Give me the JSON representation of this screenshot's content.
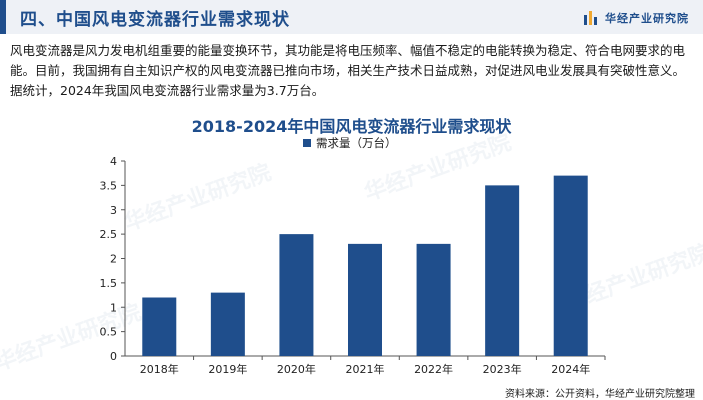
{
  "header": {
    "title": "四、中国风电变流器行业需求现状",
    "brand": "华经产业研究院"
  },
  "intro": "风电变流器是风力发电机组重要的能量变换环节，其功能是将电压频率、幅值不稳定的电能转换为稳定、符合电网要求的电能。目前，我国拥有自主知识产权的风电变流器已推向市场，相关生产技术日益成熟，对促进风电业发展具有突破性意义。据统计，2024年我国风电变流器行业需求量为3.7万台。",
  "watermark": "华经产业研究院",
  "colors": {
    "accent": "#1f4e8c",
    "bar": "#1f4e8c",
    "header_bg": "#eef1f6"
  },
  "chart_data": {
    "type": "bar",
    "title": "2018-2024年中国风电变流器行业需求现状",
    "categories": [
      "2018年",
      "2019年",
      "2020年",
      "2021年",
      "2022年",
      "2023年",
      "2024年"
    ],
    "series": [
      {
        "name": "需求量（万台）",
        "values": [
          1.2,
          1.3,
          2.5,
          2.3,
          2.3,
          3.5,
          3.7
        ]
      }
    ],
    "yticks": [
      "0",
      "0.5",
      "1",
      "1.5",
      "2",
      "2.5",
      "3",
      "3.5",
      "4"
    ],
    "ylim": [
      0,
      4
    ],
    "grid": false,
    "legend": "top-center"
  },
  "source": "资料来源：公开资料，华经产业研究院整理"
}
